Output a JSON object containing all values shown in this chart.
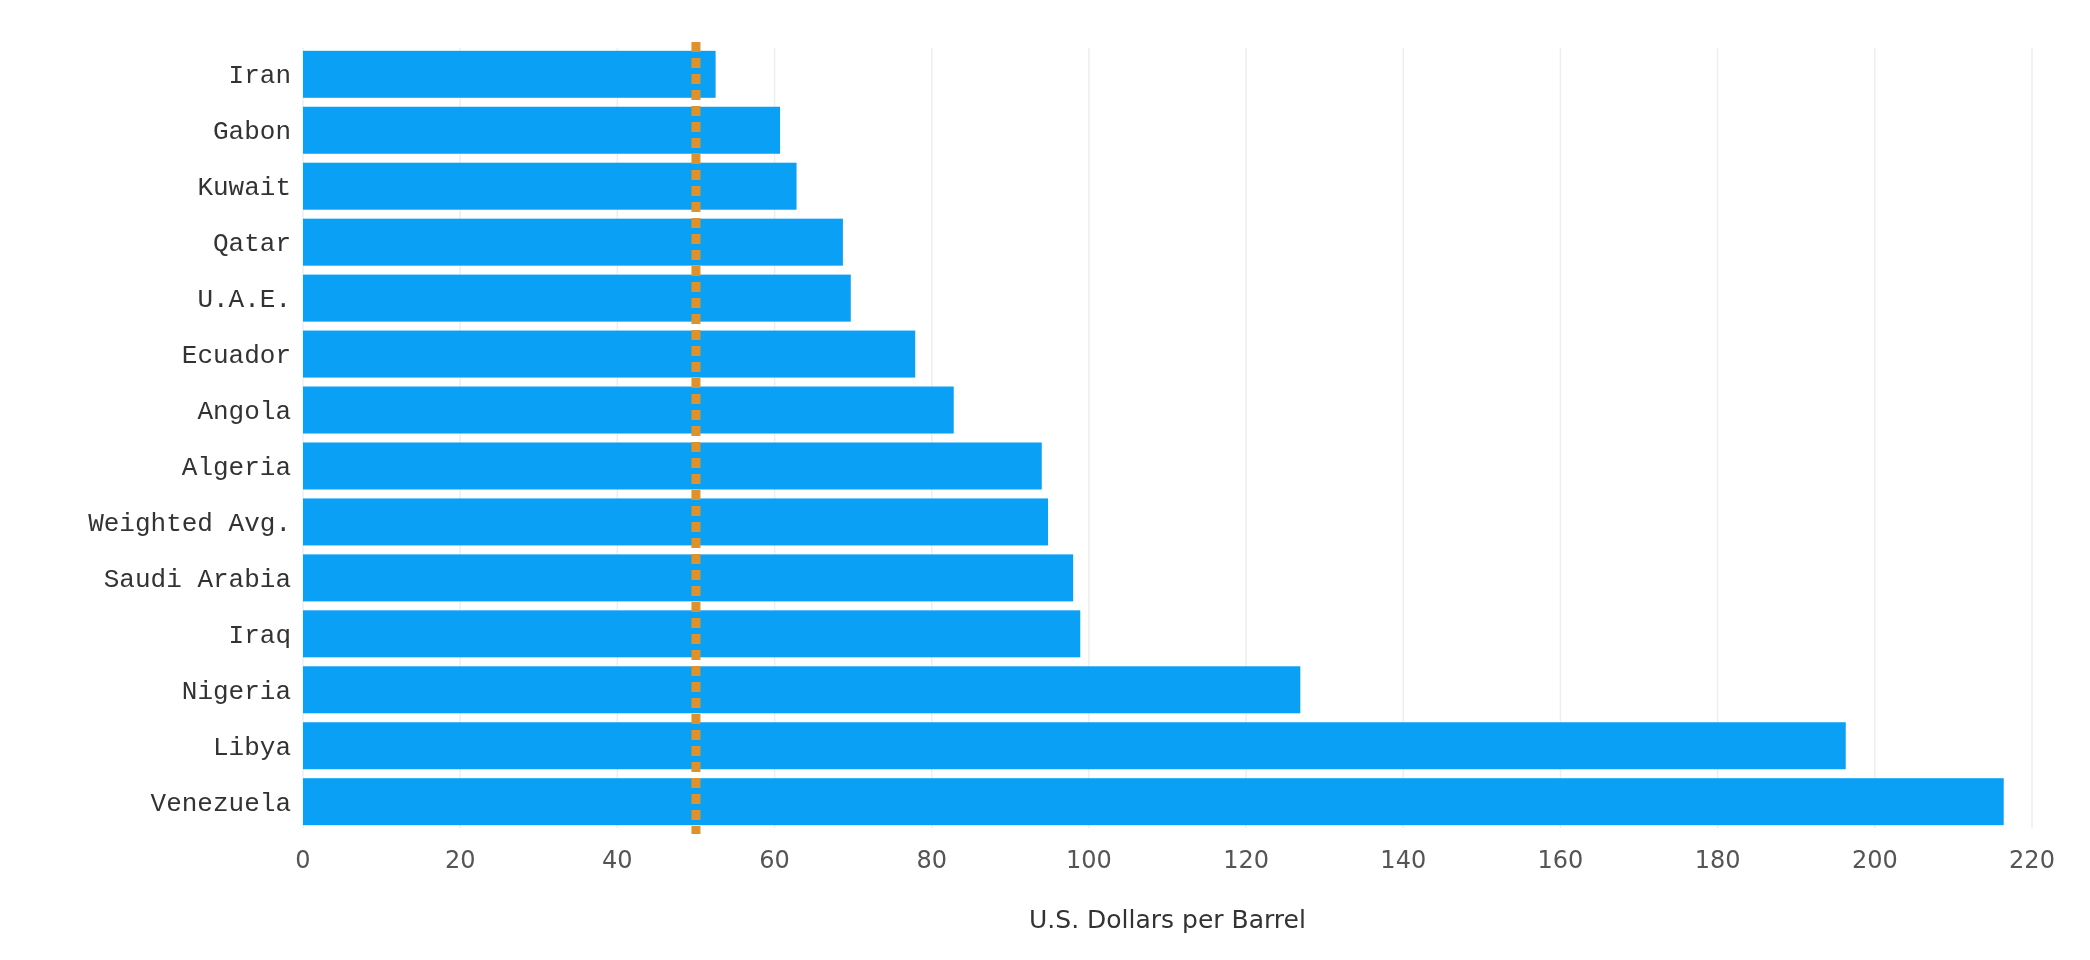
{
  "chart_data": {
    "type": "bar",
    "orientation": "horizontal",
    "xlabel": "U.S. Dollars per Barrel",
    "categories": [
      "Iran",
      "Gabon",
      "Kuwait",
      "Qatar",
      "U.A.E.",
      "Ecuador",
      "Angola",
      "Algeria",
      "Weighted Avg.",
      "Saudi Arabia",
      "Iraq",
      "Nigeria",
      "Libya",
      "Venezuela"
    ],
    "values": [
      52.5,
      60.7,
      62.8,
      68.7,
      69.7,
      77.9,
      82.8,
      94.0,
      94.8,
      98,
      98.9,
      126.9,
      196.3,
      216.4
    ],
    "color": "#0aa0f5",
    "xlim": [
      0,
      220
    ],
    "xticks": [
      0,
      20,
      40,
      60,
      80,
      100,
      120,
      140,
      160,
      180,
      200,
      220
    ],
    "grid": "x",
    "ref_lines": [
      {
        "axis": "x",
        "value": 50,
        "color": "#e0922a",
        "line_style": "dashed"
      }
    ]
  }
}
